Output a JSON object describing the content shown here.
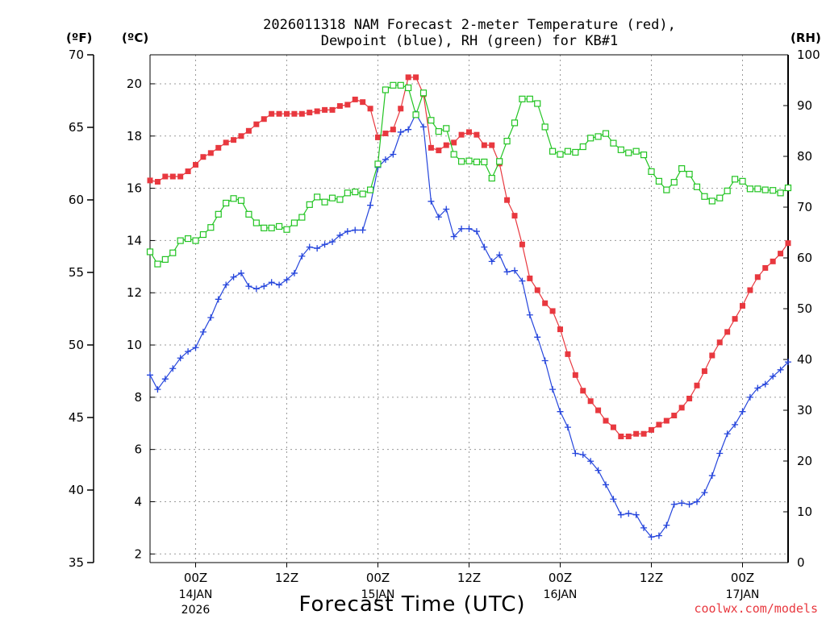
{
  "chart_data": {
    "type": "line",
    "title_line1": "2026011318 NAM Forecast 2-meter Temperature (red),",
    "title_line2": "Dewpoint (blue), RH (green) for KB#1",
    "xlabel": "Forecast Time (UTC)",
    "credit": "coolwx.com/models",
    "units": {
      "fahrenheit": "(ºF)",
      "celsius": "(ºC)",
      "rh": "(RH)"
    },
    "x_hours_range": [
      0,
      84
    ],
    "ylim_celsius": [
      1.67,
      21.11
    ],
    "ylim_fahrenheit": [
      35,
      70
    ],
    "ylim_rh": [
      0,
      100
    ],
    "yticks_fahrenheit": [
      "35",
      "40",
      "45",
      "50",
      "55",
      "60",
      "65",
      "70"
    ],
    "yticks_celsius": [
      "2",
      "4",
      "6",
      "8",
      "10",
      "12",
      "14",
      "16",
      "18",
      "20"
    ],
    "yticks_rh": [
      "0",
      "10",
      "20",
      "30",
      "40",
      "50",
      "60",
      "70",
      "80",
      "90",
      "100"
    ],
    "xticks": [
      {
        "hour": 6,
        "label": "00Z",
        "date": "14JAN",
        "year": "2026"
      },
      {
        "hour": 18,
        "label": "12Z",
        "date": "",
        "year": ""
      },
      {
        "hour": 30,
        "label": "00Z",
        "date": "15JAN",
        "year": ""
      },
      {
        "hour": 42,
        "label": "12Z",
        "date": "",
        "year": ""
      },
      {
        "hour": 54,
        "label": "00Z",
        "date": "16JAN",
        "year": ""
      },
      {
        "hour": 66,
        "label": "12Z",
        "date": "",
        "year": ""
      },
      {
        "hour": 78,
        "label": "00Z",
        "date": "17JAN",
        "year": ""
      }
    ],
    "series": [
      {
        "name": "Temperature (red)",
        "units": "°C",
        "color": "#e8383f",
        "marker": "square-filled",
        "x": [
          0,
          1,
          2,
          3,
          4,
          5,
          6,
          7,
          8,
          9,
          10,
          11,
          12,
          13,
          14,
          15,
          16,
          17,
          18,
          19,
          20,
          21,
          22,
          23,
          24,
          25,
          26,
          27,
          28,
          29,
          30,
          31,
          32,
          33,
          34,
          35,
          36,
          37,
          38,
          39,
          40,
          41,
          42,
          43,
          44,
          45,
          46,
          47,
          48,
          49,
          50,
          51,
          52,
          53,
          54,
          55,
          56,
          57,
          58,
          59,
          60,
          61,
          62,
          63,
          64,
          65,
          66,
          67,
          68,
          69,
          70,
          71,
          72,
          73,
          74,
          75,
          76,
          77,
          78,
          79,
          80,
          81,
          82,
          83,
          84
        ],
        "values": [
          16.3,
          16.25,
          16.45,
          16.45,
          16.45,
          16.65,
          16.9,
          17.2,
          17.35,
          17.55,
          17.75,
          17.85,
          18.0,
          18.2,
          18.45,
          18.65,
          18.85,
          18.85,
          18.85,
          18.85,
          18.85,
          18.9,
          18.95,
          19.0,
          19.0,
          19.15,
          19.2,
          19.4,
          19.3,
          19.05,
          17.95,
          18.1,
          18.25,
          19.05,
          20.25,
          20.25,
          19.6,
          17.55,
          17.45,
          17.65,
          17.75,
          18.05,
          18.15,
          18.05,
          17.65,
          17.65,
          16.95,
          15.55,
          14.95,
          13.85,
          12.55,
          12.1,
          11.6,
          11.3,
          10.6,
          9.65,
          8.85,
          8.25,
          7.85,
          7.5,
          7.1,
          6.85,
          6.5,
          6.5,
          6.6,
          6.6,
          6.75,
          6.95,
          7.1,
          7.3,
          7.6,
          7.95,
          8.45,
          9.0,
          9.6,
          10.1,
          10.5,
          11.0,
          11.5,
          12.1,
          12.6,
          12.95,
          13.2,
          13.5,
          13.9
        ]
      },
      {
        "name": "Dewpoint (blue)",
        "units": "°C",
        "color": "#2545dc",
        "marker": "plus",
        "x": [
          0,
          1,
          2,
          3,
          4,
          5,
          6,
          7,
          8,
          9,
          10,
          11,
          12,
          13,
          14,
          15,
          16,
          17,
          18,
          19,
          20,
          21,
          22,
          23,
          24,
          25,
          26,
          27,
          28,
          29,
          30,
          31,
          32,
          33,
          34,
          35,
          36,
          37,
          38,
          39,
          40,
          41,
          42,
          43,
          44,
          45,
          46,
          47,
          48,
          49,
          50,
          51,
          52,
          53,
          54,
          55,
          56,
          57,
          58,
          59,
          60,
          61,
          62,
          63,
          64,
          65,
          66,
          67,
          68,
          69,
          70,
          71,
          72,
          73,
          74,
          75,
          76,
          77,
          78,
          79,
          80,
          81,
          82,
          83,
          84
        ],
        "values": [
          8.85,
          8.3,
          8.7,
          9.1,
          9.5,
          9.75,
          9.9,
          10.5,
          11.05,
          11.75,
          12.3,
          12.6,
          12.75,
          12.25,
          12.15,
          12.25,
          12.4,
          12.3,
          12.5,
          12.75,
          13.4,
          13.75,
          13.7,
          13.85,
          13.95,
          14.2,
          14.35,
          14.4,
          14.4,
          15.35,
          16.8,
          17.1,
          17.3,
          18.15,
          18.25,
          18.85,
          18.35,
          15.5,
          14.9,
          15.2,
          14.15,
          14.45,
          14.45,
          14.35,
          13.75,
          13.2,
          13.45,
          12.8,
          12.85,
          12.45,
          11.15,
          10.3,
          9.4,
          8.3,
          7.45,
          6.85,
          5.85,
          5.8,
          5.55,
          5.2,
          4.65,
          4.1,
          3.5,
          3.55,
          3.5,
          3.0,
          2.65,
          2.7,
          3.1,
          3.9,
          3.95,
          3.9,
          4.0,
          4.35,
          5.0,
          5.85,
          6.6,
          6.95,
          7.45,
          8.0,
          8.35,
          8.5,
          8.8,
          9.05,
          9.35
        ]
      },
      {
        "name": "RH (green)",
        "units": "%",
        "color": "#22c422",
        "marker": "square-open",
        "x": [
          0,
          1,
          2,
          3,
          4,
          5,
          6,
          7,
          8,
          9,
          10,
          11,
          12,
          13,
          14,
          15,
          16,
          17,
          18,
          19,
          20,
          21,
          22,
          23,
          24,
          25,
          26,
          27,
          28,
          29,
          30,
          31,
          32,
          33,
          34,
          35,
          36,
          37,
          38,
          39,
          40,
          41,
          42,
          43,
          44,
          45,
          46,
          47,
          48,
          49,
          50,
          51,
          52,
          53,
          54,
          55,
          56,
          57,
          58,
          59,
          60,
          61,
          62,
          63,
          64,
          65,
          66,
          67,
          68,
          69,
          70,
          71,
          72,
          73,
          74,
          75,
          76,
          77,
          78,
          79,
          80,
          81,
          82,
          83,
          84
        ],
        "values": [
          61.2,
          58.8,
          59.7,
          61.0,
          63.4,
          63.8,
          63.4,
          64.6,
          66.0,
          68.6,
          70.8,
          71.7,
          71.3,
          68.6,
          66.9,
          65.9,
          65.9,
          66.2,
          65.6,
          66.9,
          68.0,
          70.5,
          72.0,
          71.0,
          71.8,
          71.5,
          72.8,
          73.0,
          72.6,
          73.4,
          78.5,
          93.1,
          94.0,
          94.0,
          93.5,
          88.2,
          92.5,
          87.1,
          84.9,
          85.5,
          80.4,
          79.0,
          79.1,
          78.9,
          78.9,
          75.7,
          79.0,
          83.0,
          86.6,
          91.3,
          91.3,
          90.4,
          85.8,
          81.0,
          80.4,
          81.0,
          80.8,
          81.9,
          83.6,
          83.9,
          84.5,
          82.6,
          81.3,
          80.7,
          81.0,
          80.3,
          77.0,
          75.1,
          73.4,
          74.9,
          77.6,
          76.5,
          74.0,
          72.1,
          71.2,
          71.8,
          73.2,
          75.5,
          75.1,
          73.6,
          73.6,
          73.4,
          73.3,
          72.8,
          73.8
        ]
      }
    ]
  }
}
